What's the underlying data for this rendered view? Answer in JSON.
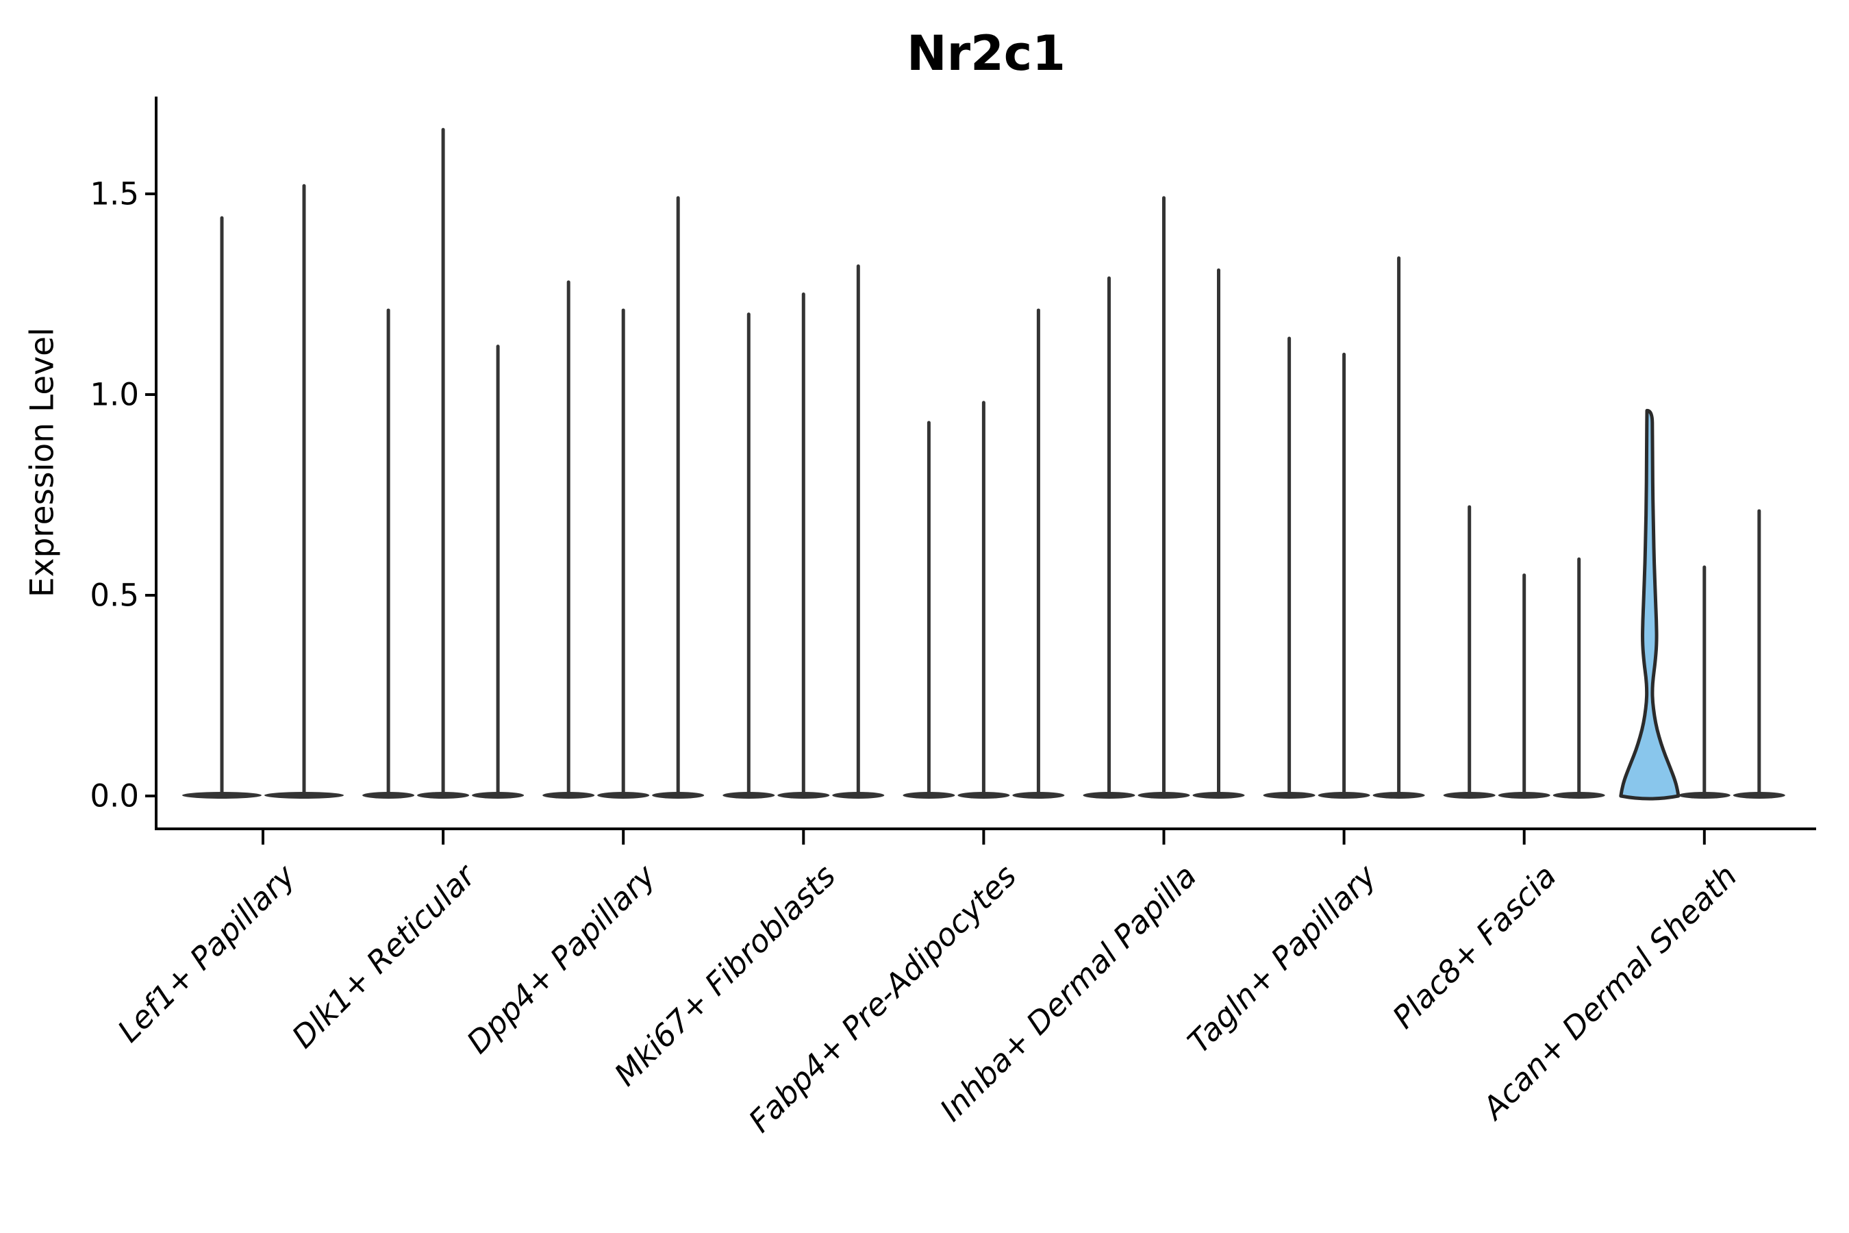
{
  "colors": {
    "axis": "#000000",
    "violin_stroke": "#343434",
    "highlight_fill": "#89C6EC",
    "highlight_stroke": "#2b2b2b",
    "background": "#ffffff",
    "text": "#000000"
  },
  "chart_data": {
    "type": "violin",
    "title": "Nr2c1",
    "ylabel": "Expression Level",
    "xlabel": "",
    "ylim": [
      0,
      1.75
    ],
    "yticks": [
      0.0,
      0.5,
      1.0,
      1.5
    ],
    "ytick_labels": [
      "0.0",
      "0.5",
      "1.0",
      "1.5"
    ],
    "grid": false,
    "legend": null,
    "categories": [
      "Lef1+ Papillary",
      "Dlk1+ Reticular",
      "Dpp4+ Papillary",
      "Mki67+ Fibroblasts",
      "Fabp4+ Pre-Adipocytes",
      "Inhba+ Dermal Papilla",
      "Tagln+ Papillary",
      "Plac8+ Fascia",
      "Acan+ Dermal Sheath"
    ],
    "groups": [
      {
        "label": "Lef1+ Papillary",
        "violins": [
          {
            "max": 1.44
          },
          {
            "max": 1.52
          }
        ]
      },
      {
        "label": "Dlk1+ Reticular",
        "violins": [
          {
            "max": 1.21
          },
          {
            "max": 1.66
          },
          {
            "max": 1.12
          }
        ]
      },
      {
        "label": "Dpp4+ Papillary",
        "violins": [
          {
            "max": 1.28
          },
          {
            "max": 1.21
          },
          {
            "max": 1.49
          }
        ]
      },
      {
        "label": "Mki67+ Fibroblasts",
        "violins": [
          {
            "max": 1.2
          },
          {
            "max": 1.25
          },
          {
            "max": 1.32
          }
        ]
      },
      {
        "label": "Fabp4+ Pre-Adipocytes",
        "violins": [
          {
            "max": 0.93
          },
          {
            "max": 0.98
          },
          {
            "max": 1.21
          }
        ]
      },
      {
        "label": "Inhba+ Dermal Papilla",
        "violins": [
          {
            "max": 1.29
          },
          {
            "max": 1.49
          },
          {
            "max": 1.31
          }
        ]
      },
      {
        "label": "Tagln+ Papillary",
        "violins": [
          {
            "max": 1.14
          },
          {
            "max": 1.1
          },
          {
            "max": 1.34
          }
        ]
      },
      {
        "label": "Plac8+ Fascia",
        "violins": [
          {
            "max": 0.72
          },
          {
            "max": 0.55
          },
          {
            "max": 0.59
          }
        ]
      },
      {
        "label": "Acan+ Dermal Sheath",
        "violins": [
          {
            "max": 0.96,
            "highlighted": true,
            "profile": [
              [
                0.96,
                0.09
              ],
              [
                0.9,
                0.1
              ],
              [
                0.82,
                0.105
              ],
              [
                0.74,
                0.115
              ],
              [
                0.66,
                0.135
              ],
              [
                0.58,
                0.16
              ],
              [
                0.5,
                0.2
              ],
              [
                0.44,
                0.235
              ],
              [
                0.38,
                0.25
              ],
              [
                0.33,
                0.19
              ],
              [
                0.295,
                0.125
              ],
              [
                0.265,
                0.095
              ],
              [
                0.235,
                0.105
              ],
              [
                0.2,
                0.165
              ],
              [
                0.165,
                0.26
              ],
              [
                0.13,
                0.4
              ],
              [
                0.1,
                0.55
              ],
              [
                0.07,
                0.72
              ],
              [
                0.04,
                0.88
              ],
              [
                0.015,
                0.97
              ],
              [
                0.0,
                1.0
              ]
            ]
          },
          {
            "max": 0.57
          },
          {
            "max": 0.71
          }
        ]
      }
    ]
  }
}
